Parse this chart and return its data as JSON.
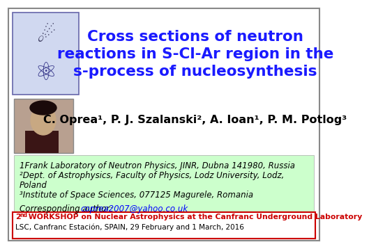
{
  "bg_color": "#ffffff",
  "title_text": "Cross sections of neutron\nreactions in S-Cl-Ar region in the\ns-process of nucleosynthesis",
  "title_color": "#1a1aff",
  "title_fontsize": 15.5,
  "authors_text": "C. Oprea¹, P. J. Szalanski², A. Ioan¹, P. M. Potlog³",
  "authors_fontsize": 11.5,
  "affiliations_fontsize": 8.5,
  "affiliations_bg": "#ccffcc",
  "email_color": "#0000ff",
  "email_text": "coprea2007@yahoo.co.uk",
  "corr_label": "Corresponding author: ",
  "aff_line1": "1Frank Laboratory of Neutron Physics, JINR, Dubna 141980, Russia",
  "aff_line2": "²Dept. of Astrophysics, Faculty of Physics, Lodz University, Lodz,",
  "aff_line3": "Poland",
  "aff_line4": "³Institute of Space Sciences, 077125 Magurele, Romania",
  "bottom_text1_red": " WORKSHOP on Nuclear Astrophysics at the Canfranc Underground Laboratory",
  "bottom_text2": "LSC, Canfranc Estación, SPAIN, 29 February and 1 March, 2016",
  "bottom_color": "#cc0000",
  "bottom_bg": "#ffffff",
  "bottom_border_color": "#cc0000",
  "slide_border_color": "#888888"
}
